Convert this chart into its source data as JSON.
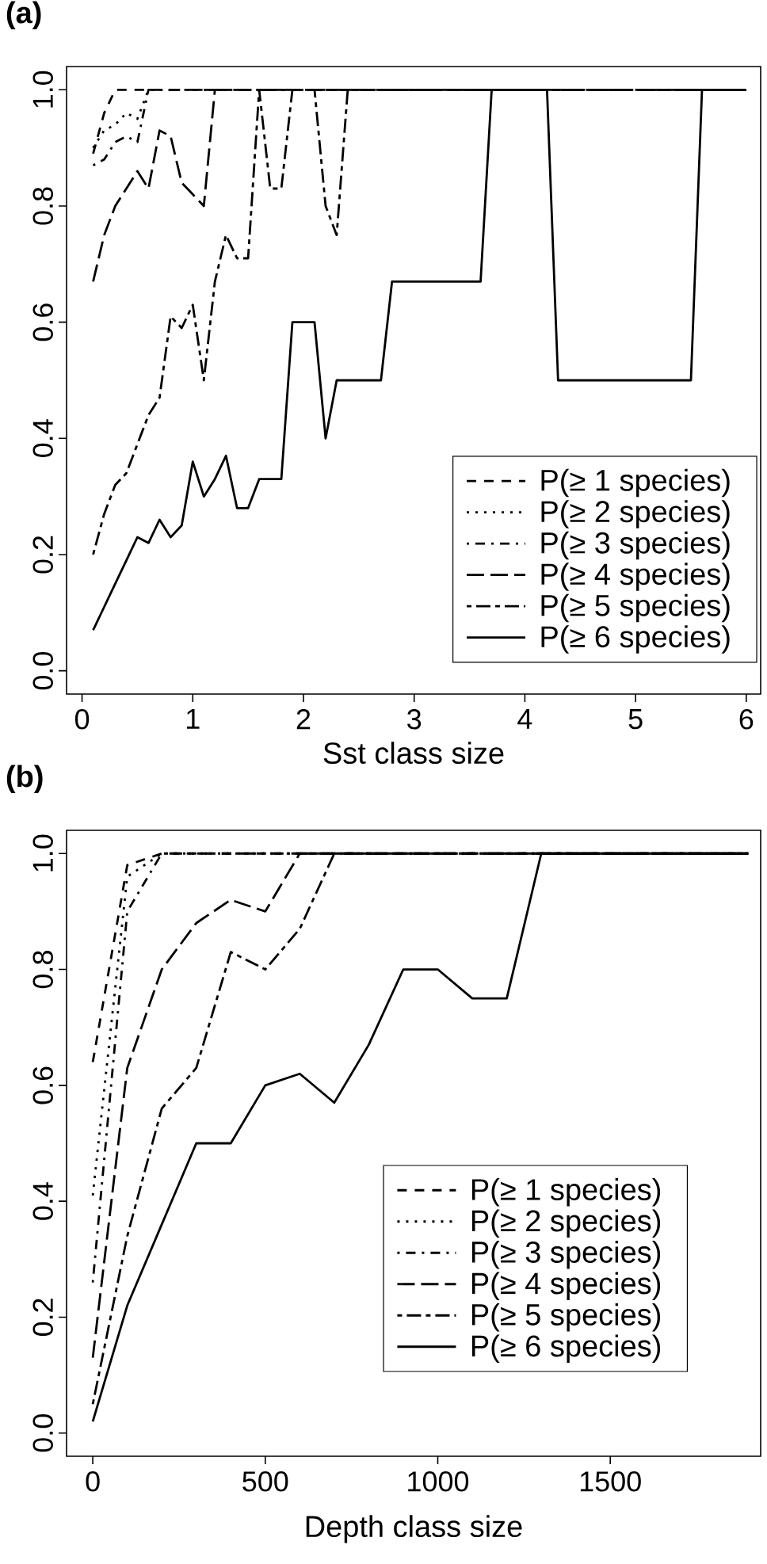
{
  "chart_data": [
    {
      "type": "line",
      "title": "(a)",
      "xlabel": "Sst class size",
      "xlim": [
        -0.14,
        6.13
      ],
      "ylim": [
        -0.04,
        1.04
      ],
      "xticks": [
        0,
        1,
        2,
        3,
        4,
        5,
        6
      ],
      "yticks": [
        {
          "value": 0,
          "label": "0.0"
        },
        {
          "value": 0.2,
          "label": "0.2"
        },
        {
          "value": 0.4,
          "label": "0.4"
        },
        {
          "value": 0.6,
          "label": "0.6"
        },
        {
          "value": 0.8,
          "label": "0.8"
        },
        {
          "value": 1,
          "label": "1.0"
        }
      ],
      "legend": "bottom right",
      "grid": false,
      "series": [
        {
          "name": "P(≥ 1 species)",
          "color": "#000000",
          "line_style": "dashed",
          "x": [
            0.1,
            0.2,
            0.3,
            6.0
          ],
          "values": [
            0.89,
            0.96,
            1.0,
            1.0
          ]
        },
        {
          "name": "P(≥ 2 species)",
          "color": "#000000",
          "line_style": "dotted",
          "x": [
            0.1,
            0.2,
            0.3,
            0.4,
            0.5,
            0.6,
            6.0
          ],
          "values": [
            0.9,
            0.93,
            0.94,
            0.96,
            0.95,
            1.0,
            1.0
          ]
        },
        {
          "name": "P(≥ 3 species)",
          "color": "#000000",
          "line_style": "dashdot",
          "x": [
            0.1,
            0.2,
            0.3,
            0.4,
            0.5,
            0.6,
            6.0
          ],
          "values": [
            0.87,
            0.88,
            0.91,
            0.92,
            0.91,
            1.0,
            1.0
          ]
        },
        {
          "name": "P(≥ 4 species)",
          "color": "#000000",
          "line_style": "longdash",
          "x": [
            0.1,
            0.2,
            0.3,
            0.4,
            0.5,
            0.6,
            0.7,
            0.8,
            0.9,
            1.0,
            1.1,
            1.2,
            6.0
          ],
          "values": [
            0.67,
            0.75,
            0.8,
            0.83,
            0.86,
            0.83,
            0.93,
            0.92,
            0.84,
            0.82,
            0.8,
            1.0,
            1.0
          ]
        },
        {
          "name": "P(≥ 5 species)",
          "color": "#000000",
          "line_style": "twodash",
          "x": [
            0.1,
            0.2,
            0.3,
            0.4,
            0.5,
            0.6,
            0.7,
            0.8,
            0.9,
            1.0,
            1.1,
            1.2,
            1.3,
            1.4,
            1.5,
            1.6,
            1.7,
            1.8,
            1.9,
            2.1,
            2.2,
            2.3,
            2.4,
            6.0
          ],
          "values": [
            0.2,
            0.27,
            0.32,
            0.34,
            0.39,
            0.44,
            0.47,
            0.61,
            0.59,
            0.63,
            0.5,
            0.67,
            0.75,
            0.71,
            0.71,
            1.0,
            0.83,
            0.83,
            1.0,
            1.0,
            0.8,
            0.75,
            1.0,
            1.0
          ]
        },
        {
          "name": "P(≥ 6 species)",
          "color": "#000000",
          "line_style": "solid",
          "x": [
            0.1,
            0.2,
            0.3,
            0.4,
            0.5,
            0.6,
            0.7,
            0.8,
            0.9,
            1.0,
            1.1,
            1.2,
            1.3,
            1.4,
            1.5,
            1.6,
            1.8,
            1.9,
            2.1,
            2.2,
            2.3,
            2.7,
            2.8,
            3.6,
            3.7,
            4.2,
            4.3,
            5.5,
            5.6,
            6.0
          ],
          "values": [
            0.07,
            0.11,
            0.15,
            0.19,
            0.23,
            0.22,
            0.26,
            0.23,
            0.25,
            0.36,
            0.3,
            0.33,
            0.37,
            0.28,
            0.28,
            0.33,
            0.33,
            0.6,
            0.6,
            0.4,
            0.5,
            0.5,
            0.67,
            0.67,
            1.0,
            1.0,
            0.5,
            0.5,
            1.0,
            1.0
          ]
        }
      ]
    },
    {
      "type": "line",
      "title": "(b)",
      "xlabel": "Depth class size",
      "xlim": [
        -76,
        1936
      ],
      "ylim": [
        -0.04,
        1.04
      ],
      "xticks": [
        0,
        500,
        1000,
        1500
      ],
      "yticks": [
        {
          "value": 0,
          "label": "0.0"
        },
        {
          "value": 0.2,
          "label": "0.2"
        },
        {
          "value": 0.4,
          "label": "0.4"
        },
        {
          "value": 0.6,
          "label": "0.6"
        },
        {
          "value": 0.8,
          "label": "0.8"
        },
        {
          "value": 1,
          "label": "1.0"
        }
      ],
      "legend": "right",
      "grid": false,
      "series": [
        {
          "name": "P(≥ 1 species)",
          "color": "#000000",
          "line_style": "dashed",
          "x": [
            0,
            100,
            200,
            1900
          ],
          "values": [
            0.64,
            0.98,
            1.0,
            1.0
          ]
        },
        {
          "name": "P(≥ 2 species)",
          "color": "#000000",
          "line_style": "dotted",
          "x": [
            0,
            100,
            200,
            1900
          ],
          "values": [
            0.41,
            0.96,
            1.0,
            1.0
          ]
        },
        {
          "name": "P(≥ 3 species)",
          "color": "#000000",
          "line_style": "dashdot",
          "x": [
            0,
            100,
            200,
            1900
          ],
          "values": [
            0.26,
            0.9,
            1.0,
            1.0
          ]
        },
        {
          "name": "P(≥ 4 species)",
          "color": "#000000",
          "line_style": "longdash",
          "x": [
            0,
            100,
            200,
            300,
            400,
            500,
            600,
            1900
          ],
          "values": [
            0.13,
            0.63,
            0.8,
            0.88,
            0.92,
            0.9,
            1.0,
            1.0
          ]
        },
        {
          "name": "P(≥ 5 species)",
          "color": "#000000",
          "line_style": "twodash",
          "x": [
            0,
            100,
            200,
            300,
            400,
            500,
            600,
            700,
            1900
          ],
          "values": [
            0.05,
            0.34,
            0.56,
            0.63,
            0.83,
            0.8,
            0.87,
            1.0,
            1.0
          ]
        },
        {
          "name": "P(≥ 6 species)",
          "color": "#000000",
          "line_style": "solid",
          "x": [
            0,
            100,
            200,
            300,
            400,
            500,
            600,
            700,
            800,
            900,
            1000,
            1100,
            1200,
            1300,
            1900
          ],
          "values": [
            0.02,
            0.22,
            0.36,
            0.5,
            0.5,
            0.6,
            0.62,
            0.57,
            0.67,
            0.8,
            0.8,
            0.75,
            0.75,
            1.0,
            1.0
          ]
        }
      ]
    }
  ]
}
